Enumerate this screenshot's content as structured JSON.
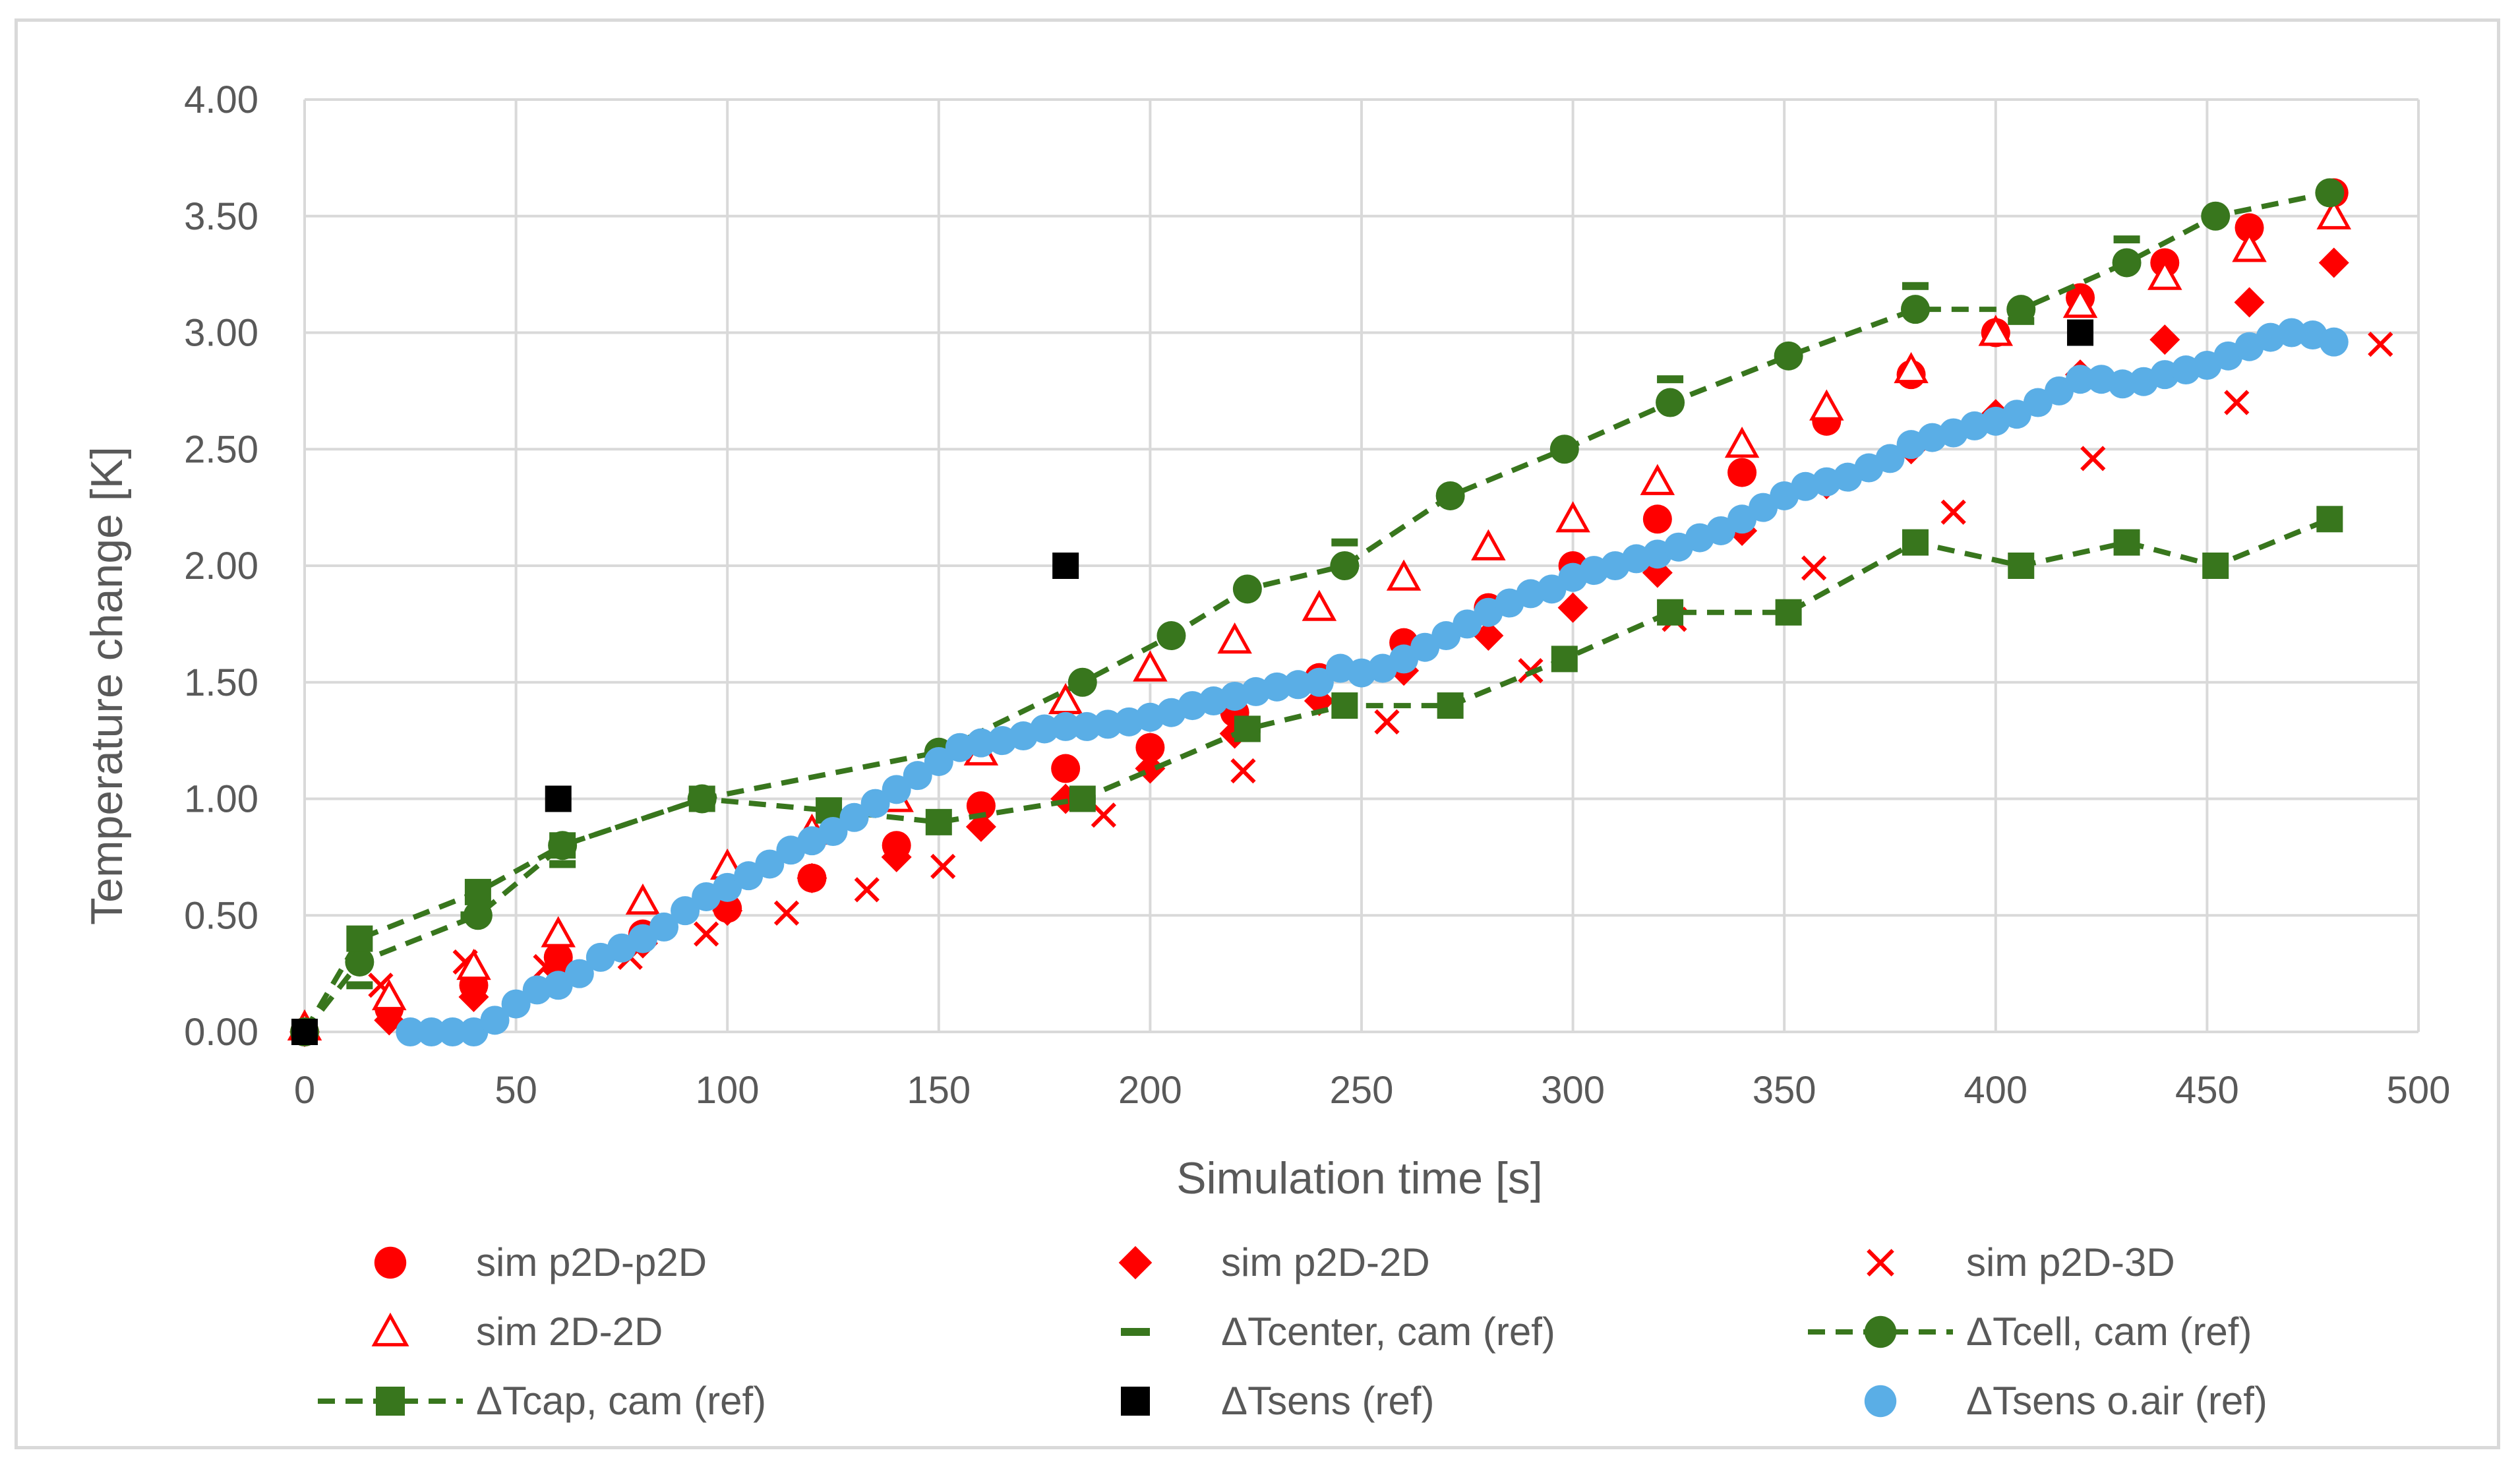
{
  "chart_data": {
    "type": "scatter",
    "title": "",
    "xlabel": "Simulation time [s]",
    "ylabel": "Temperature change [K]",
    "xlim": [
      0,
      500
    ],
    "ylim": [
      0,
      4
    ],
    "xticks": [
      "0",
      "50",
      "100",
      "150",
      "200",
      "250",
      "300",
      "350",
      "400",
      "450",
      "500"
    ],
    "yticks": [
      "0.00",
      "0.50",
      "1.00",
      "1.50",
      "2.00",
      "2.50",
      "3.00",
      "3.50",
      "4.00"
    ],
    "grid": "major gridlines on both axes",
    "legend_position": "bottom",
    "series": [
      {
        "name": "sim p2D-p2D",
        "marker": "circle",
        "color": "#ff0000",
        "line": "none",
        "x": [
          0,
          20,
          40,
          60,
          80,
          100,
          120,
          140,
          160,
          180,
          200,
          220,
          240,
          260,
          280,
          300,
          320,
          340,
          360,
          380,
          400,
          420,
          440,
          460,
          480
        ],
        "y": [
          0.0,
          0.1,
          0.2,
          0.32,
          0.42,
          0.53,
          0.66,
          0.8,
          0.97,
          1.13,
          1.22,
          1.37,
          1.52,
          1.67,
          1.82,
          2.0,
          2.2,
          2.4,
          2.62,
          2.82,
          3.0,
          3.15,
          3.3,
          3.45,
          3.6
        ]
      },
      {
        "name": "sim p2D-2D",
        "marker": "diamond",
        "color": "#ff0000",
        "line": "none",
        "x": [
          0,
          20,
          40,
          60,
          80,
          100,
          120,
          140,
          160,
          180,
          200,
          220,
          240,
          260,
          280,
          300,
          320,
          340,
          360,
          380,
          400,
          420,
          440,
          460,
          480
        ],
        "y": [
          0.0,
          0.05,
          0.15,
          0.26,
          0.38,
          0.52,
          0.66,
          0.75,
          0.88,
          1.0,
          1.13,
          1.28,
          1.42,
          1.55,
          1.7,
          1.82,
          1.97,
          2.15,
          2.35,
          2.5,
          2.65,
          2.82,
          2.97,
          3.13,
          3.3
        ]
      },
      {
        "name": "sim p2D-3D",
        "marker": "x",
        "color": "#ff0000",
        "line": "none",
        "x": [
          18,
          38,
          57,
          77,
          95,
          114,
          133,
          151,
          189,
          222,
          256,
          290,
          324,
          357,
          390,
          423,
          457,
          491
        ],
        "y": [
          0.2,
          0.3,
          0.28,
          0.32,
          0.42,
          0.51,
          0.61,
          0.71,
          0.93,
          1.12,
          1.33,
          1.55,
          1.77,
          1.99,
          2.23,
          2.46,
          2.7,
          2.95
        ]
      },
      {
        "name": "sim 2D-2D",
        "marker": "triangle-open",
        "color": "#ff0000",
        "line": "none",
        "x": [
          0,
          20,
          40,
          60,
          80,
          100,
          120,
          140,
          160,
          180,
          200,
          220,
          240,
          260,
          280,
          300,
          320,
          340,
          360,
          380,
          400,
          420,
          440,
          460,
          480
        ],
        "y": [
          0.02,
          0.15,
          0.28,
          0.42,
          0.56,
          0.71,
          0.86,
          1.0,
          1.2,
          1.42,
          1.56,
          1.68,
          1.82,
          1.95,
          2.08,
          2.2,
          2.36,
          2.52,
          2.68,
          2.84,
          3.0,
          3.12,
          3.24,
          3.36,
          3.5
        ]
      },
      {
        "name": "ΔTcenter, cam (ref)",
        "marker": "dash",
        "color": "#38761d",
        "line": "none",
        "x": [
          13,
          40,
          61,
          184,
          223,
          246,
          323,
          351,
          381,
          406,
          431,
          452,
          479
        ],
        "y": [
          0.2,
          0.5,
          0.72,
          1.0,
          1.3,
          2.1,
          2.8,
          2.9,
          3.2,
          3.05,
          3.4,
          3.5,
          3.6
        ]
      },
      {
        "name": "ΔTcell, cam (ref)",
        "marker": "circle",
        "color": "#38761d",
        "line": "dashed",
        "x": [
          0,
          13,
          41,
          61,
          94,
          150,
          184,
          205,
          223,
          246,
          271,
          298,
          323,
          351,
          381,
          406,
          431,
          452,
          479
        ],
        "y": [
          0.0,
          0.3,
          0.5,
          0.8,
          1.0,
          1.2,
          1.5,
          1.7,
          1.9,
          2.0,
          2.3,
          2.5,
          2.7,
          2.9,
          3.1,
          3.1,
          3.3,
          3.5,
          3.6
        ]
      },
      {
        "name": "ΔTcap, cam (ref)",
        "marker": "square",
        "color": "#38761d",
        "line": "dashed",
        "x": [
          0,
          13,
          41,
          61,
          94,
          124,
          150,
          184,
          223,
          246,
          271,
          298,
          323,
          351,
          381,
          406,
          431,
          452,
          479
        ],
        "y": [
          0.0,
          0.4,
          0.6,
          0.8,
          1.0,
          0.95,
          0.9,
          1.0,
          1.3,
          1.4,
          1.4,
          1.6,
          1.8,
          1.8,
          2.1,
          2.0,
          2.1,
          2.0,
          2.2
        ]
      },
      {
        "name": "ΔTsens (ref)",
        "marker": "square",
        "color": "#000000",
        "line": "none",
        "x": [
          0,
          60,
          180,
          420
        ],
        "y": [
          0.0,
          1.0,
          2.0,
          3.0
        ]
      },
      {
        "name": "ΔTsens o.air (ref)",
        "marker": "circle",
        "color": "#5aaee6",
        "line": "none",
        "x": [
          25,
          30,
          35,
          40,
          45,
          50,
          55,
          60,
          65,
          70,
          75,
          80,
          85,
          90,
          95,
          100,
          105,
          110,
          115,
          120,
          125,
          130,
          135,
          140,
          145,
          150,
          155,
          160,
          165,
          170,
          175,
          180,
          185,
          190,
          195,
          200,
          205,
          210,
          215,
          220,
          225,
          230,
          235,
          240,
          245,
          250,
          255,
          260,
          265,
          270,
          275,
          280,
          285,
          290,
          295,
          300,
          305,
          310,
          315,
          320,
          325,
          330,
          335,
          340,
          345,
          350,
          355,
          360,
          365,
          370,
          375,
          380,
          385,
          390,
          395,
          400,
          405,
          410,
          415,
          420,
          425,
          430,
          435,
          440,
          445,
          450,
          455,
          460,
          465,
          470,
          475,
          480
        ],
        "y": [
          0.0,
          0.0,
          0.0,
          0.0,
          0.05,
          0.12,
          0.18,
          0.2,
          0.25,
          0.32,
          0.36,
          0.4,
          0.45,
          0.52,
          0.58,
          0.62,
          0.67,
          0.72,
          0.78,
          0.82,
          0.86,
          0.92,
          0.98,
          1.04,
          1.1,
          1.16,
          1.22,
          1.24,
          1.25,
          1.27,
          1.3,
          1.31,
          1.31,
          1.32,
          1.33,
          1.35,
          1.37,
          1.4,
          1.42,
          1.44,
          1.46,
          1.48,
          1.49,
          1.5,
          1.56,
          1.54,
          1.56,
          1.6,
          1.65,
          1.7,
          1.75,
          1.8,
          1.84,
          1.88,
          1.9,
          1.95,
          1.98,
          2.0,
          2.03,
          2.05,
          2.08,
          2.12,
          2.15,
          2.2,
          2.25,
          2.3,
          2.34,
          2.36,
          2.38,
          2.42,
          2.46,
          2.52,
          2.55,
          2.57,
          2.6,
          2.62,
          2.65,
          2.7,
          2.75,
          2.8,
          2.8,
          2.78,
          2.79,
          2.82,
          2.84,
          2.86,
          2.9,
          2.94,
          2.98,
          3.0,
          2.99,
          2.96
        ]
      }
    ]
  }
}
